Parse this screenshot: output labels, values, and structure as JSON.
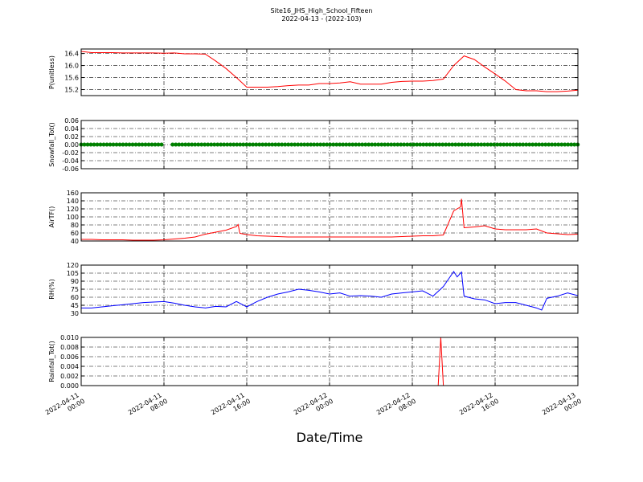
{
  "figure": {
    "title": "Site16_JHS_High_School_Fifteen",
    "subtitle": "2022-04-13 - (2022-103)",
    "xlabel": "Date/Time"
  },
  "chart_data": [
    {
      "type": "line",
      "ylabel": "P(unitless)",
      "color": "#ff0000",
      "grid": true,
      "xlim": [
        "2022-04-11 00:00",
        "2022-04-13 00:00"
      ],
      "ylim": [
        15.0,
        16.55
      ],
      "yticks": [
        15.2,
        15.6,
        {
          "value": 16,
          "label": "16.0"
        },
        16.4
      ],
      "x": [
        "2022-04-11 00:00",
        "2022-04-11 01:00",
        "2022-04-11 02:00",
        "2022-04-11 03:00",
        "2022-04-11 04:00",
        "2022-04-11 05:00",
        "2022-04-11 06:00",
        "2022-04-11 07:00",
        "2022-04-11 08:00",
        "2022-04-11 09:00",
        "2022-04-11 10:00",
        "2022-04-11 11:00",
        "2022-04-11 12:00",
        "2022-04-11 13:00",
        "2022-04-11 14:00",
        "2022-04-11 15:00",
        "2022-04-11 16:00",
        "2022-04-11 17:00",
        "2022-04-11 18:00",
        "2022-04-11 19:00",
        "2022-04-11 20:00",
        "2022-04-11 21:00",
        "2022-04-11 22:00",
        "2022-04-11 23:00",
        "2022-04-12 00:00",
        "2022-04-12 01:00",
        "2022-04-12 02:00",
        "2022-04-12 03:00",
        "2022-04-12 04:00",
        "2022-04-12 05:00",
        "2022-04-12 06:00",
        "2022-04-12 07:00",
        "2022-04-12 08:00",
        "2022-04-12 09:00",
        "2022-04-12 10:00",
        "2022-04-12 11:00",
        "2022-04-12 12:00",
        "2022-04-12 13:00",
        "2022-04-12 14:00",
        "2022-04-12 15:00",
        "2022-04-12 16:00",
        "2022-04-12 17:00",
        "2022-04-12 18:00",
        "2022-04-12 19:00",
        "2022-04-12 20:00",
        "2022-04-12 21:00",
        "2022-04-12 22:00",
        "2022-04-12 23:00",
        "2022-04-13 00:00"
      ],
      "values": [
        16.47,
        16.43,
        16.43,
        16.43,
        16.42,
        16.42,
        16.42,
        16.42,
        16.41,
        16.42,
        16.39,
        16.39,
        16.38,
        16.15,
        15.9,
        15.6,
        15.28,
        15.28,
        15.28,
        15.3,
        15.33,
        15.35,
        15.35,
        15.4,
        15.4,
        15.42,
        15.46,
        15.38,
        15.38,
        15.38,
        15.44,
        15.47,
        15.48,
        15.48,
        15.5,
        15.55,
        16.0,
        16.32,
        16.2,
        15.95,
        15.72,
        15.48,
        15.2,
        15.16,
        15.16,
        15.13,
        15.13,
        15.15,
        15.18
      ]
    },
    {
      "type": "line",
      "ylabel": "Snowfall_Tot()",
      "color": "#008000",
      "marker": "o",
      "grid": true,
      "xlim": [
        "2022-04-11 00:00",
        "2022-04-13 00:00"
      ],
      "ylim": [
        -0.06,
        0.06
      ],
      "yticks": [
        -0.06,
        -0.04,
        -0.02,
        {
          "value": 0,
          "label": "0.00"
        },
        0.02,
        0.04,
        0.06
      ],
      "x": [
        "2022-04-11 00:00",
        "2022-04-11 07:50",
        "2022-04-11 08:20",
        "2022-04-11 08:50",
        "2022-04-13 00:00"
      ],
      "values": [
        0,
        0,
        null,
        0,
        0
      ]
    },
    {
      "type": "line",
      "ylabel": "AirTF()",
      "color": "#ff0000",
      "grid": true,
      "xlim": [
        "2022-04-11 00:00",
        "2022-04-13 00:00"
      ],
      "ylim": [
        40,
        160
      ],
      "yticks": [
        40,
        60,
        80,
        100,
        120,
        140,
        160
      ],
      "x": [
        "2022-04-11 00:00",
        "2022-04-11 01:00",
        "2022-04-11 02:00",
        "2022-04-11 03:00",
        "2022-04-11 04:00",
        "2022-04-11 05:00",
        "2022-04-11 06:00",
        "2022-04-11 07:00",
        "2022-04-11 08:00",
        "2022-04-11 09:00",
        "2022-04-11 10:00",
        "2022-04-11 11:00",
        "2022-04-11 12:00",
        "2022-04-11 13:00",
        "2022-04-11 14:00",
        "2022-04-11 15:00",
        "2022-04-11 15:10",
        "2022-04-11 15:20",
        "2022-04-11 16:00",
        "2022-04-11 17:00",
        "2022-04-11 18:00",
        "2022-04-11 19:00",
        "2022-04-11 20:00",
        "2022-04-11 21:00",
        "2022-04-11 22:00",
        "2022-04-11 23:00",
        "2022-04-12 00:00",
        "2022-04-12 01:00",
        "2022-04-12 02:00",
        "2022-04-12 03:00",
        "2022-04-12 04:00",
        "2022-04-12 05:00",
        "2022-04-12 06:00",
        "2022-04-12 07:00",
        "2022-04-12 08:00",
        "2022-04-12 09:00",
        "2022-04-12 10:00",
        "2022-04-12 11:00",
        "2022-04-12 12:00",
        "2022-04-12 12:40",
        "2022-04-12 12:45",
        "2022-04-12 13:00",
        "2022-04-12 14:00",
        "2022-04-12 15:00",
        "2022-04-12 16:00",
        "2022-04-12 17:00",
        "2022-04-12 18:00",
        "2022-04-12 19:00",
        "2022-04-12 20:00",
        "2022-04-12 21:00",
        "2022-04-12 22:00",
        "2022-04-12 23:00",
        "2022-04-13 00:00"
      ],
      "values": [
        44,
        44,
        43,
        43,
        43,
        42,
        42,
        42,
        43,
        45,
        47,
        50,
        57,
        62,
        67,
        76,
        81,
        59,
        56,
        53,
        52,
        51,
        50,
        50,
        50,
        50,
        50,
        50,
        50,
        50,
        50,
        50,
        50,
        51,
        52,
        53,
        53,
        55,
        115,
        125,
        145,
        73,
        75,
        78,
        70,
        68,
        68,
        68,
        70,
        60,
        58,
        56,
        57
      ]
    },
    {
      "type": "line",
      "ylabel": "RH(%)",
      "color": "#0000ff",
      "grid": true,
      "xlim": [
        "2022-04-11 00:00",
        "2022-04-13 00:00"
      ],
      "ylim": [
        30,
        120
      ],
      "yticks": [
        30,
        45,
        60,
        75,
        90,
        105,
        120
      ],
      "x": [
        "2022-04-11 00:00",
        "2022-04-11 01:00",
        "2022-04-11 02:00",
        "2022-04-11 03:00",
        "2022-04-11 04:00",
        "2022-04-11 05:00",
        "2022-04-11 06:00",
        "2022-04-11 07:00",
        "2022-04-11 08:00",
        "2022-04-11 09:00",
        "2022-04-11 10:00",
        "2022-04-11 11:00",
        "2022-04-11 12:00",
        "2022-04-11 13:00",
        "2022-04-11 14:00",
        "2022-04-11 15:00",
        "2022-04-11 16:00",
        "2022-04-11 17:00",
        "2022-04-11 18:00",
        "2022-04-11 19:00",
        "2022-04-11 20:00",
        "2022-04-11 21:00",
        "2022-04-11 22:00",
        "2022-04-11 23:00",
        "2022-04-12 00:00",
        "2022-04-12 01:00",
        "2022-04-12 02:00",
        "2022-04-12 03:00",
        "2022-04-12 04:00",
        "2022-04-12 05:00",
        "2022-04-12 06:00",
        "2022-04-12 07:00",
        "2022-04-12 08:00",
        "2022-04-12 09:00",
        "2022-04-12 10:00",
        "2022-04-12 11:00",
        "2022-04-12 12:00",
        "2022-04-12 12:20",
        "2022-04-12 12:45",
        "2022-04-12 13:00",
        "2022-04-12 14:00",
        "2022-04-12 15:00",
        "2022-04-12 16:00",
        "2022-04-12 17:00",
        "2022-04-12 18:00",
        "2022-04-12 19:00",
        "2022-04-12 20:00",
        "2022-04-12 20:30",
        "2022-04-12 21:00",
        "2022-04-12 22:00",
        "2022-04-12 23:00",
        "2022-04-13 00:00"
      ],
      "values": [
        40,
        40,
        42,
        44,
        46,
        48,
        50,
        51,
        52,
        49,
        45,
        42,
        40,
        43,
        42,
        52,
        42,
        52,
        60,
        66,
        70,
        75,
        73,
        70,
        66,
        68,
        62,
        63,
        62,
        60,
        66,
        68,
        70,
        72,
        62,
        80,
        108,
        98,
        107,
        62,
        57,
        55,
        48,
        50,
        50,
        45,
        40,
        36,
        58,
        62,
        68,
        63
      ]
    },
    {
      "type": "line",
      "ylabel": "Rainfall_Tot()",
      "color": "#ff0000",
      "grid": true,
      "xlim": [
        "2022-04-11 00:00",
        "2022-04-13 00:00"
      ],
      "ylim": [
        0,
        0.01
      ],
      "yticks": [
        {
          "value": 0,
          "label": "0.000"
        },
        0.002,
        0.004,
        0.006,
        0.008,
        {
          "value": 0.01,
          "label": "0.010"
        }
      ],
      "xticks": [
        "2022-04-11 00:00",
        "2022-04-11 08:00",
        "2022-04-11 16:00",
        "2022-04-12 00:00",
        "2022-04-12 08:00",
        "2022-04-12 16:00",
        "2022-04-13 00:00"
      ],
      "x": [
        "2022-04-11 00:00",
        "2022-04-12 10:30",
        "2022-04-12 10:45",
        "2022-04-12 11:00",
        "2022-04-13 00:00"
      ],
      "values": [
        0,
        0,
        0.01,
        0,
        0
      ]
    }
  ]
}
